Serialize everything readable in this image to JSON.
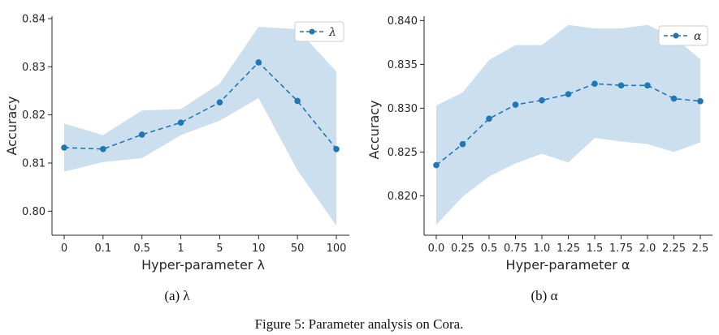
{
  "chart_data": [
    {
      "type": "line",
      "panel": "a",
      "categories": [
        "0",
        "0.1",
        "0.5",
        "1",
        "5",
        "10",
        "50",
        "100"
      ],
      "values": [
        0.8132,
        0.8129,
        0.8159,
        0.8184,
        0.8226,
        0.8309,
        0.8229,
        0.8129
      ],
      "band_upper": [
        0.8182,
        0.8158,
        0.8209,
        0.8212,
        0.8265,
        0.8383,
        0.8378,
        0.829
      ],
      "band_lower": [
        0.8082,
        0.8102,
        0.811,
        0.8158,
        0.8188,
        0.8235,
        0.8085,
        0.797
      ],
      "ylim": [
        0.795,
        0.8405
      ],
      "yticks": [
        "0.80",
        "0.81",
        "0.82",
        "0.83",
        "0.84"
      ],
      "ytick_values": [
        0.8,
        0.81,
        0.82,
        0.83,
        0.84
      ],
      "xlabel": "Hyper-parameter λ",
      "ylabel": "Accuracy",
      "legend": "λ",
      "legend_position": "top-right",
      "caption": "(a) λ",
      "line_color": "#1f77b4",
      "band_color": "#a9c9e2"
    },
    {
      "type": "line",
      "panel": "b",
      "categories": [
        "0.0",
        "0.25",
        "0.5",
        "0.75",
        "1.0",
        "1.25",
        "1.5",
        "1.75",
        "2.0",
        "2.25",
        "2.5"
      ],
      "values": [
        0.8235,
        0.8259,
        0.8288,
        0.8304,
        0.8309,
        0.8316,
        0.8328,
        0.8326,
        0.8326,
        0.8311,
        0.8308
      ],
      "band_upper": [
        0.8303,
        0.8318,
        0.8355,
        0.8372,
        0.8372,
        0.8395,
        0.8391,
        0.8391,
        0.8395,
        0.8381,
        0.8356
      ],
      "band_lower": [
        0.8167,
        0.8199,
        0.8222,
        0.8237,
        0.8248,
        0.8238,
        0.8266,
        0.8262,
        0.8259,
        0.825,
        0.8261
      ],
      "ylim": [
        0.8155,
        0.8405
      ],
      "yticks": [
        "0.820",
        "0.825",
        "0.830",
        "0.835",
        "0.840"
      ],
      "ytick_values": [
        0.82,
        0.825,
        0.83,
        0.835,
        0.84
      ],
      "xlabel": "Hyper-parameter α",
      "ylabel": "Accuracy",
      "legend": "α",
      "legend_position": "top-right",
      "caption": "(b) α",
      "line_color": "#1f77b4",
      "band_color": "#a9c9e2"
    }
  ],
  "figure_caption": "Figure 5: Parameter analysis on Cora."
}
